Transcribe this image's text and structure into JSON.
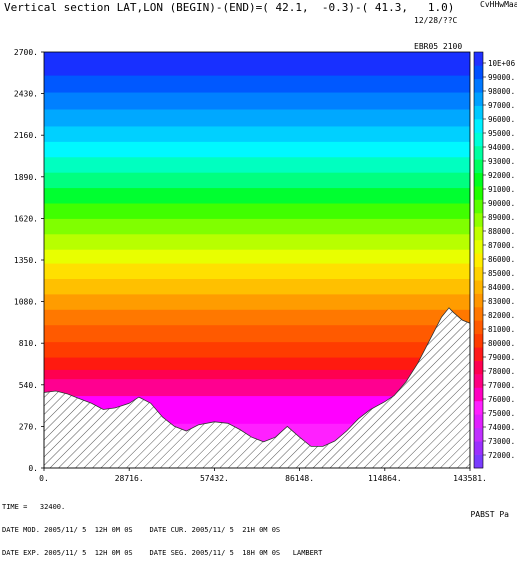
{
  "header": {
    "title": "Vertical section LAT,LON (BEGIN)-(END)=( 42.1,  -0.3)-( 41.3,   1.0)",
    "date_line": "12/28/??C",
    "exp_line": "EBR05 2100",
    "corner": "CvHHwMaa"
  },
  "footer": {
    "time_line": "TIME =   32400.",
    "mod_line": "DATE MOD. 2005/11/ 5  12H 0M 0S    DATE CUR. 2005/11/ 5  21H 0M 0S",
    "exp_line": "DATE EXP. 2005/11/ 5  12H 0M 0S    DATE SEG. 2005/11/ 5  18H 0M 0S   LAMBERT",
    "variable_label": "PABST Pa"
  },
  "chart_data": {
    "type": "area",
    "title": "Vertical section LAT,LON (BEGIN)-(END)=( 42.1,  -0.3)-( 41.3,   1.0)",
    "xlabel": "",
    "ylabel": "",
    "xlim": [
      0,
      143581
    ],
    "ylim": [
      0,
      2700
    ],
    "x_ticks": [
      "0.",
      "28716.",
      "57432.",
      "86148.",
      "114864.",
      "143581."
    ],
    "y_ticks": [
      "0.",
      "270.",
      "540.",
      "810.",
      "1080.",
      "1350.",
      "1620.",
      "1890.",
      "2160.",
      "2430.",
      "2700."
    ],
    "colorbar": {
      "label": "PABST Pa",
      "levels": [
        "72000.",
        "73000.",
        "74000.",
        "75000.",
        "76000.",
        "77000.",
        "78000.",
        "79000.",
        "80000.",
        "81000.",
        "82000.",
        "83000.",
        "84000.",
        "85000.",
        "86000.",
        "87000.",
        "88000.",
        "89000.",
        "90000.",
        "91000.",
        "92000.",
        "93000.",
        "94000.",
        "95000.",
        "96000.",
        "97000.",
        "98000.",
        "99000.",
        "10E+06"
      ],
      "colors": [
        "#7a3cff",
        "#9b30ff",
        "#c030ff",
        "#e020ff",
        "#ff20ff",
        "#ff00c0",
        "#ff0080",
        "#ff0050",
        "#ff1a1a",
        "#ff3c00",
        "#ff5a00",
        "#ff7800",
        "#ff9600",
        "#ffb400",
        "#ffd200",
        "#ffee00",
        "#e6ff00",
        "#c0ff00",
        "#90ff00",
        "#5aff00",
        "#20ff00",
        "#00ff20",
        "#00ff60",
        "#00ffa0",
        "#00ffd8",
        "#00f0ff",
        "#00c8ff",
        "#00a0ff",
        "#0078ff",
        "#0050ff",
        "#2030ff"
      ]
    },
    "terrain": {
      "x": [
        0,
        4000,
        8000,
        12000,
        16000,
        20000,
        24000,
        28716,
        32000,
        36000,
        40000,
        44000,
        48000,
        52000,
        57432,
        62000,
        66000,
        70000,
        74000,
        78000,
        82000,
        86148,
        90000,
        94000,
        98000,
        102000,
        106000,
        110000,
        114864,
        118000,
        122000,
        126000,
        130000,
        134000,
        136500,
        138000,
        141000,
        143581
      ],
      "y": [
        490,
        500,
        480,
        450,
        420,
        380,
        390,
        420,
        460,
        420,
        330,
        270,
        240,
        280,
        300,
        290,
        250,
        200,
        170,
        200,
        270,
        200,
        140,
        140,
        175,
        240,
        320,
        380,
        430,
        470,
        560,
        680,
        830,
        980,
        1040,
        1010,
        960,
        940
      ]
    },
    "shading": [
      {
        "y_max": 290,
        "color": "#ff20ff"
      },
      {
        "y_max": 470,
        "color": "#ff00ff"
      },
      {
        "y_max": 580,
        "color": "#ff0090"
      },
      {
        "y_max": 640,
        "color": "#ff0050"
      },
      {
        "y_max": 720,
        "color": "#ff1a10"
      },
      {
        "y_max": 820,
        "color": "#ff3c00"
      },
      {
        "y_max": 930,
        "color": "#ff5a00"
      },
      {
        "y_max": 1030,
        "color": "#ff7800"
      },
      {
        "y_max": 1130,
        "color": "#ff9c00"
      },
      {
        "y_max": 1230,
        "color": "#ffc000"
      },
      {
        "y_max": 1330,
        "color": "#ffe000"
      },
      {
        "y_max": 1420,
        "color": "#e8ff00"
      },
      {
        "y_max": 1520,
        "color": "#b8ff00"
      },
      {
        "y_max": 1620,
        "color": "#80ff00"
      },
      {
        "y_max": 1720,
        "color": "#40ff00"
      },
      {
        "y_max": 1820,
        "color": "#00ff30"
      },
      {
        "y_max": 1920,
        "color": "#00ff80"
      },
      {
        "y_max": 2020,
        "color": "#00ffc0"
      },
      {
        "y_max": 2120,
        "color": "#00f8ff"
      },
      {
        "y_max": 2220,
        "color": "#00d0ff"
      },
      {
        "y_max": 2330,
        "color": "#00a8ff"
      },
      {
        "y_max": 2440,
        "color": "#0080ff"
      },
      {
        "y_max": 2550,
        "color": "#0058ff"
      },
      {
        "y_max": 2700,
        "color": "#1830ff"
      }
    ]
  }
}
